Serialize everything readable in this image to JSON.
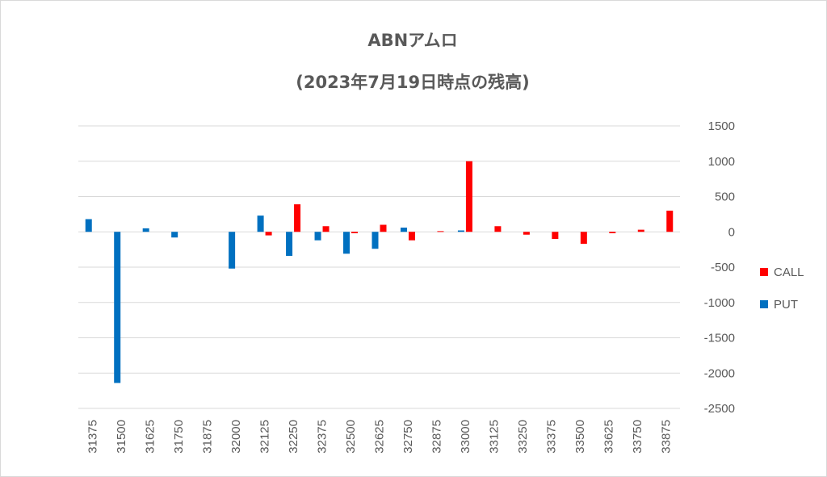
{
  "chart_data": {
    "type": "bar",
    "title": "ABNアムロ",
    "subtitle": "(2023年7月19日時点の残高)",
    "xlabel": "",
    "ylabel": "",
    "ylim": [
      -2500,
      1500
    ],
    "yticks": [
      1500,
      1000,
      500,
      0,
      -500,
      -1000,
      -1500,
      -2000,
      -2500
    ],
    "grid": true,
    "legend_position": "right",
    "categories": [
      "31375",
      "31500",
      "31625",
      "31750",
      "31875",
      "32000",
      "32125",
      "32250",
      "32375",
      "32500",
      "32625",
      "32750",
      "32875",
      "33000",
      "33125",
      "33250",
      "33375",
      "33500",
      "33625",
      "33750",
      "33875"
    ],
    "series": [
      {
        "name": "PUT",
        "color": "#0070C0",
        "values": [
          180,
          -2140,
          50,
          -80,
          0,
          -520,
          230,
          -340,
          -120,
          -310,
          -240,
          60,
          0,
          20,
          0,
          0,
          0,
          0,
          0,
          0,
          0
        ]
      },
      {
        "name": "CALL",
        "color": "#FF0000",
        "values": [
          0,
          0,
          0,
          0,
          0,
          0,
          -50,
          390,
          80,
          -20,
          100,
          -120,
          10,
          1000,
          80,
          -40,
          -100,
          -170,
          -20,
          30,
          300
        ]
      }
    ],
    "legend": [
      "CALL",
      "PUT"
    ]
  }
}
